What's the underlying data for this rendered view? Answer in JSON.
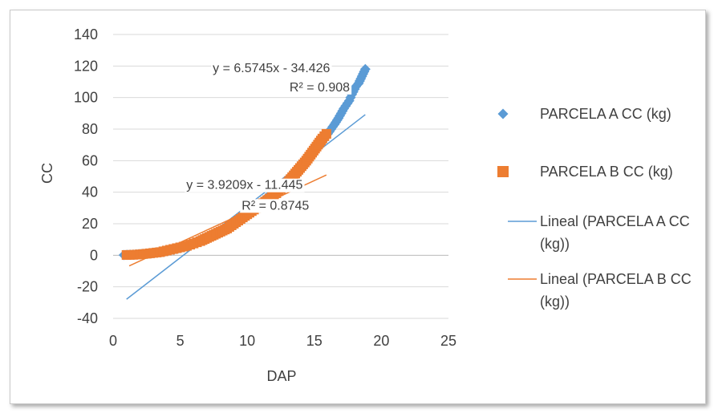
{
  "chart_data": {
    "type": "scatter",
    "title": "",
    "xlabel": "DAP",
    "ylabel": "CC",
    "xlim": [
      0,
      25
    ],
    "ylim": [
      -40,
      140
    ],
    "x_ticks": [
      0,
      5,
      10,
      15,
      20,
      25
    ],
    "y_ticks": [
      -40,
      -20,
      0,
      20,
      40,
      60,
      80,
      100,
      120,
      140
    ],
    "grid": "horizontal",
    "legend_position": "right",
    "series": [
      {
        "name": "PARCELA A CC (kg)",
        "kind": "scatter",
        "marker": "diamond",
        "color": "#5B9BD5",
        "points": [
          [
            0.8,
            0.2
          ],
          [
            1.5,
            0.4
          ],
          [
            2.5,
            1
          ],
          [
            3.5,
            2
          ],
          [
            4.5,
            3.5
          ],
          [
            5.5,
            6
          ],
          [
            6.5,
            9
          ],
          [
            7.5,
            13
          ],
          [
            8.5,
            18
          ],
          [
            9.5,
            24
          ],
          [
            10,
            27
          ],
          [
            10.5,
            30
          ],
          [
            11,
            33
          ],
          [
            11.5,
            37
          ],
          [
            12,
            40
          ],
          [
            12.5,
            44
          ],
          [
            13,
            48
          ],
          [
            13.5,
            52
          ],
          [
            14,
            57
          ],
          [
            14.5,
            61
          ],
          [
            15,
            66
          ],
          [
            15.5,
            71
          ],
          [
            16,
            77
          ],
          [
            16.5,
            83
          ],
          [
            16.8,
            87
          ],
          [
            17,
            90
          ],
          [
            17.2,
            93
          ],
          [
            17.6,
            98
          ],
          [
            17.8,
            102
          ],
          [
            18.1,
            107
          ],
          [
            18.3,
            109
          ],
          [
            18.8,
            118
          ]
        ]
      },
      {
        "name": "PARCELA B CC (kg)",
        "kind": "scatter",
        "marker": "square",
        "color": "#ED7D31",
        "points": [
          [
            1,
            0.2
          ],
          [
            1.5,
            0.3
          ],
          [
            2,
            0.6
          ],
          [
            2.5,
            1
          ],
          [
            3,
            1.5
          ],
          [
            3.5,
            2
          ],
          [
            4,
            3
          ],
          [
            4.5,
            4
          ],
          [
            5,
            5
          ],
          [
            5.5,
            6
          ],
          [
            6,
            7.5
          ],
          [
            6.5,
            9
          ],
          [
            7,
            11
          ],
          [
            7.5,
            13
          ],
          [
            8,
            15
          ],
          [
            8.5,
            17
          ],
          [
            9,
            20
          ],
          [
            9.5,
            23
          ],
          [
            10,
            26
          ],
          [
            10.5,
            29
          ],
          [
            11,
            32
          ],
          [
            11.5,
            35
          ],
          [
            12,
            38
          ],
          [
            12.5,
            42
          ],
          [
            13,
            46
          ],
          [
            14.4,
            60
          ],
          [
            15.6,
            74
          ],
          [
            15.9,
            77
          ]
        ]
      },
      {
        "name": "Lineal (PARCELA A CC (kg))",
        "kind": "trendline",
        "color": "#5B9BD5",
        "slope": 6.5745,
        "intercept": -34.426,
        "x_range": [
          1,
          18.8
        ]
      },
      {
        "name": "Lineal (PARCELA B CC (kg))",
        "kind": "trendline",
        "color": "#ED7D31",
        "slope": 3.9209,
        "intercept": -11.445,
        "x_range": [
          1.2,
          15.9
        ]
      }
    ],
    "annotations": [
      {
        "text": "y = 6.5745x - 34.426",
        "x": 11.8,
        "y": 116
      },
      {
        "text": "R² = 0.908",
        "x": 15.4,
        "y": 104
      },
      {
        "text": "y = 3.9209x - 11.445",
        "x": 9.8,
        "y": 42
      },
      {
        "text": "R² = 0.8745",
        "x": 12.1,
        "y": 29
      }
    ]
  }
}
